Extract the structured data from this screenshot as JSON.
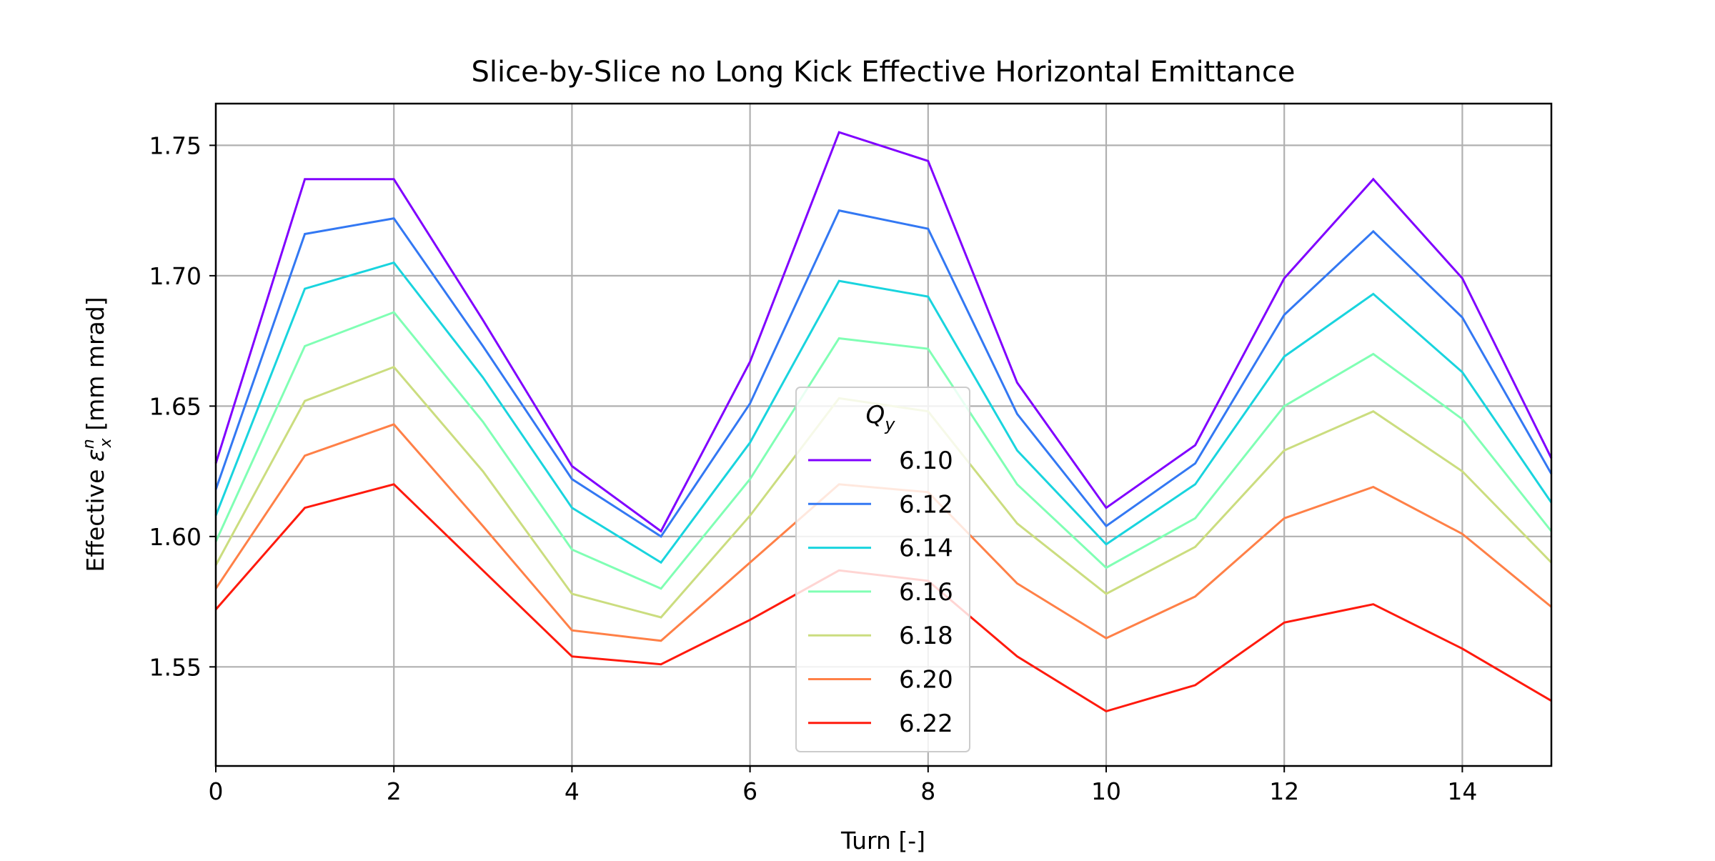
{
  "chart_data": {
    "type": "line",
    "title": "Slice-by-Slice no Long Kick Effective Horizontal Emittance",
    "xlabel": "Turn [-]",
    "ylabel": {
      "prefix": "Effective ",
      "symbol": "ε",
      "superscript": "n",
      "subscript": "x",
      "suffix": " [mm mrad]"
    },
    "xlim": [
      0,
      15
    ],
    "ylim": [
      1.512,
      1.766
    ],
    "xticks": [
      0,
      2,
      4,
      6,
      8,
      10,
      12,
      14
    ],
    "yticks": [
      1.55,
      1.6,
      1.65,
      1.7,
      1.75
    ],
    "ytick_labels": [
      "1.55",
      "1.60",
      "1.65",
      "1.70",
      "1.75"
    ],
    "grid": true,
    "legend": {
      "title": "Q",
      "title_subscript": "y",
      "placement": "center-bottom"
    },
    "x": [
      0,
      1,
      2,
      3,
      4,
      5,
      6,
      7,
      8,
      9,
      10,
      11,
      12,
      13,
      14,
      15
    ],
    "series": [
      {
        "name": "6.10",
        "color": "#8000ff",
        "values": [
          1.628,
          1.737,
          1.737,
          1.683,
          1.627,
          1.602,
          1.667,
          1.755,
          1.744,
          1.659,
          1.611,
          1.635,
          1.699,
          1.737,
          1.699,
          1.63
        ]
      },
      {
        "name": "6.12",
        "color": "#3378f3",
        "values": [
          1.618,
          1.716,
          1.722,
          1.673,
          1.622,
          1.6,
          1.651,
          1.725,
          1.718,
          1.647,
          1.604,
          1.628,
          1.685,
          1.717,
          1.684,
          1.624
        ]
      },
      {
        "name": "6.14",
        "color": "#19d4de",
        "values": [
          1.608,
          1.695,
          1.705,
          1.661,
          1.611,
          1.59,
          1.636,
          1.698,
          1.692,
          1.633,
          1.597,
          1.62,
          1.669,
          1.693,
          1.663,
          1.613
        ]
      },
      {
        "name": "6.16",
        "color": "#80ffb4",
        "values": [
          1.598,
          1.673,
          1.686,
          1.644,
          1.595,
          1.58,
          1.622,
          1.676,
          1.672,
          1.62,
          1.588,
          1.607,
          1.65,
          1.67,
          1.645,
          1.602
        ]
      },
      {
        "name": "6.18",
        "color": "#cbdd7f",
        "values": [
          1.589,
          1.652,
          1.665,
          1.625,
          1.578,
          1.569,
          1.608,
          1.653,
          1.648,
          1.605,
          1.578,
          1.596,
          1.633,
          1.648,
          1.625,
          1.59
        ]
      },
      {
        "name": "6.20",
        "color": "#ff8047",
        "values": [
          1.58,
          1.631,
          1.643,
          1.604,
          1.564,
          1.56,
          1.59,
          1.62,
          1.617,
          1.582,
          1.561,
          1.577,
          1.607,
          1.619,
          1.601,
          1.573
        ]
      },
      {
        "name": "6.22",
        "color": "#ff1a0d",
        "values": [
          1.572,
          1.611,
          1.62,
          1.587,
          1.554,
          1.551,
          1.568,
          1.587,
          1.583,
          1.554,
          1.533,
          1.543,
          1.567,
          1.574,
          1.557,
          1.537
        ]
      }
    ]
  }
}
